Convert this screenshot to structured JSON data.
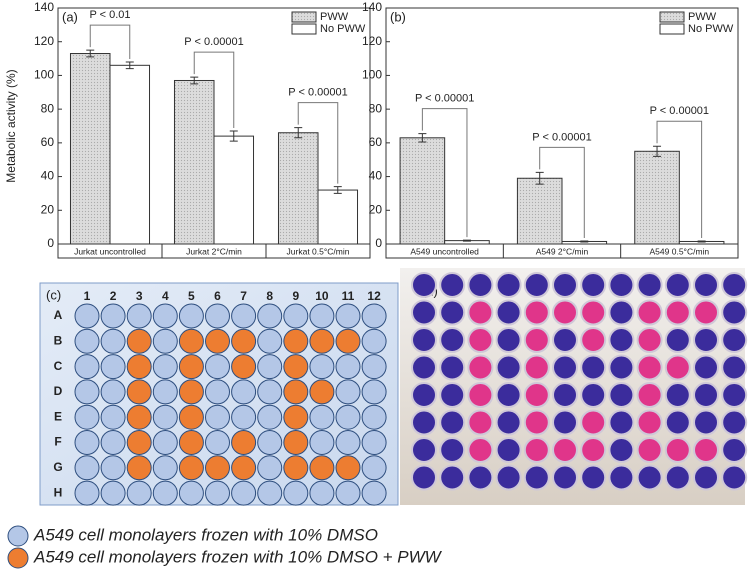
{
  "chart_data": [
    {
      "type": "bar",
      "panel": "(a)",
      "ylabel": "Metabolic activity (%)",
      "categories": [
        "Jurkat uncontrolled",
        "Jurkat 2°C/min",
        "Jurkat 0.5°C/min"
      ],
      "series": [
        {
          "name": "PWW",
          "color": "#d9d9d9",
          "values": [
            113,
            97,
            66
          ],
          "errors": [
            2,
            2,
            3
          ]
        },
        {
          "name": "No PWW",
          "color": "#ffffff",
          "values": [
            106,
            64,
            32
          ],
          "errors": [
            2,
            3,
            2
          ]
        }
      ],
      "annotations": [
        "P < 0.01",
        "P < 0.00001",
        "P < 0.00001"
      ],
      "ylim": [
        0,
        140
      ],
      "yticks": [
        0,
        20,
        40,
        60,
        80,
        100,
        120,
        140
      ],
      "legend": "upper right"
    },
    {
      "type": "bar",
      "panel": "(b)",
      "categories": [
        "A549 uncontrolled",
        "A549 2°C/min",
        "A549 0.5°C/min"
      ],
      "series": [
        {
          "name": "PWW",
          "color": "#d9d9d9",
          "values": [
            63,
            39,
            55
          ],
          "errors": [
            2.5,
            3.5,
            3
          ]
        },
        {
          "name": "No PWW",
          "color": "#ffffff",
          "values": [
            2,
            1.5,
            1.5
          ],
          "errors": [
            0.3,
            0.3,
            0.3
          ]
        }
      ],
      "annotations": [
        "P < 0.00001",
        "P < 0.00001",
        "P < 0.00001"
      ],
      "ylim": [
        0,
        140
      ],
      "yticks": [
        0,
        20,
        40,
        60,
        80,
        100,
        120,
        140
      ],
      "legend": "upper right"
    }
  ],
  "plate": {
    "panel": "(c)",
    "columns": [
      "1",
      "2",
      "3",
      "4",
      "5",
      "6",
      "7",
      "8",
      "9",
      "10",
      "11",
      "12"
    ],
    "rows": [
      {
        "label": "A",
        "pww": []
      },
      {
        "label": "B",
        "pww": [
          3,
          5,
          6,
          7,
          9,
          10,
          11
        ]
      },
      {
        "label": "C",
        "pww": [
          3,
          5,
          7,
          9
        ]
      },
      {
        "label": "D",
        "pww": [
          3,
          5,
          9,
          10
        ]
      },
      {
        "label": "E",
        "pww": [
          3,
          5,
          9
        ]
      },
      {
        "label": "F",
        "pww": [
          3,
          5,
          7,
          9
        ]
      },
      {
        "label": "G",
        "pww": [
          3,
          5,
          6,
          7,
          9,
          10,
          11
        ]
      },
      {
        "label": "H",
        "pww": []
      }
    ]
  },
  "photo": {
    "panel": "(d)"
  },
  "legend": {
    "items": [
      {
        "text": "A549 cell monolayers frozen with 10% DMSO",
        "color": "#b4c7e7"
      },
      {
        "text": "A549 cell monolayers frozen with 10% DMSO + PWW",
        "color": "#ed7d31"
      }
    ]
  }
}
